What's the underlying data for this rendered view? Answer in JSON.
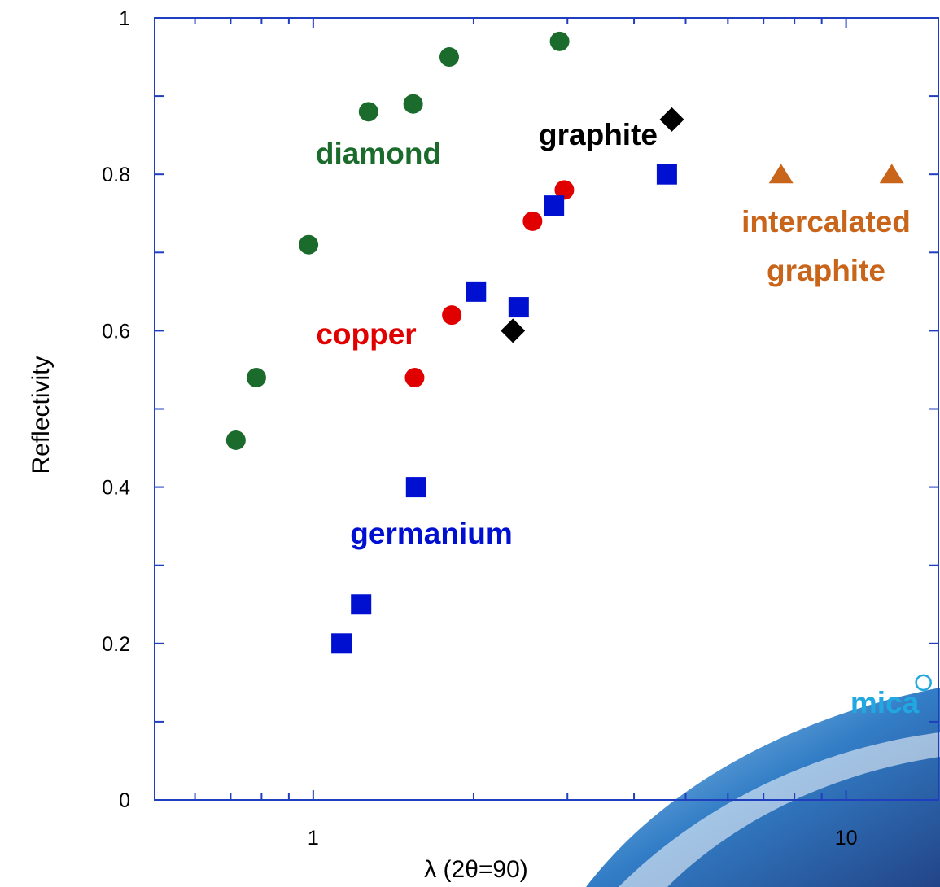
{
  "chart_data": {
    "type": "scatter",
    "x_label": "λ (2θ=90)",
    "y_label": "Reflectivity",
    "xscale": "log",
    "xlim": [
      0.504,
      14.9
    ],
    "xticks": [
      1,
      10
    ],
    "xminorticks": [
      0.6,
      0.7,
      0.8,
      0.9,
      2,
      3,
      4,
      5,
      6,
      7,
      8,
      9
    ],
    "ylim": [
      0,
      1
    ],
    "yticks": [
      0,
      0.2,
      0.4,
      0.6,
      0.8,
      1
    ],
    "yminorticks": [
      0.1,
      0.3,
      0.5,
      0.7,
      0.9
    ],
    "grid": false,
    "series": [
      {
        "name": "diamond",
        "color": "#1b6b2c",
        "marker": "circle",
        "x": [
          0.716,
          0.782,
          0.98,
          1.27,
          1.54,
          1.8,
          2.9
        ],
        "values": [
          0.46,
          0.54,
          0.71,
          0.88,
          0.89,
          0.95,
          0.97
        ]
      },
      {
        "name": "copper",
        "color": "#e00000",
        "marker": "circle",
        "x": [
          1.55,
          1.82,
          2.58,
          2.96
        ],
        "values": [
          0.54,
          0.62,
          0.74,
          0.78
        ]
      },
      {
        "name": "germanium",
        "color": "#0010d0",
        "marker": "square",
        "x": [
          1.13,
          1.23,
          1.56,
          2.02,
          2.43,
          2.83,
          4.61
        ],
        "values": [
          0.2,
          0.25,
          0.4,
          0.65,
          0.63,
          0.76,
          0.8
        ]
      },
      {
        "name": "graphite",
        "color": "#000000",
        "marker": "diamond",
        "x": [
          2.37,
          4.71
        ],
        "values": [
          0.6,
          0.87
        ]
      },
      {
        "name": "intercalated graphite",
        "color": "#c8651b",
        "marker": "triangle",
        "x": [
          7.55,
          12.18
        ],
        "values": [
          0.8,
          0.8
        ]
      },
      {
        "name": "mica",
        "color": "#22a8e0",
        "marker": "open-circle",
        "x": [
          13.97
        ],
        "values": [
          0.15
        ]
      }
    ]
  }
}
